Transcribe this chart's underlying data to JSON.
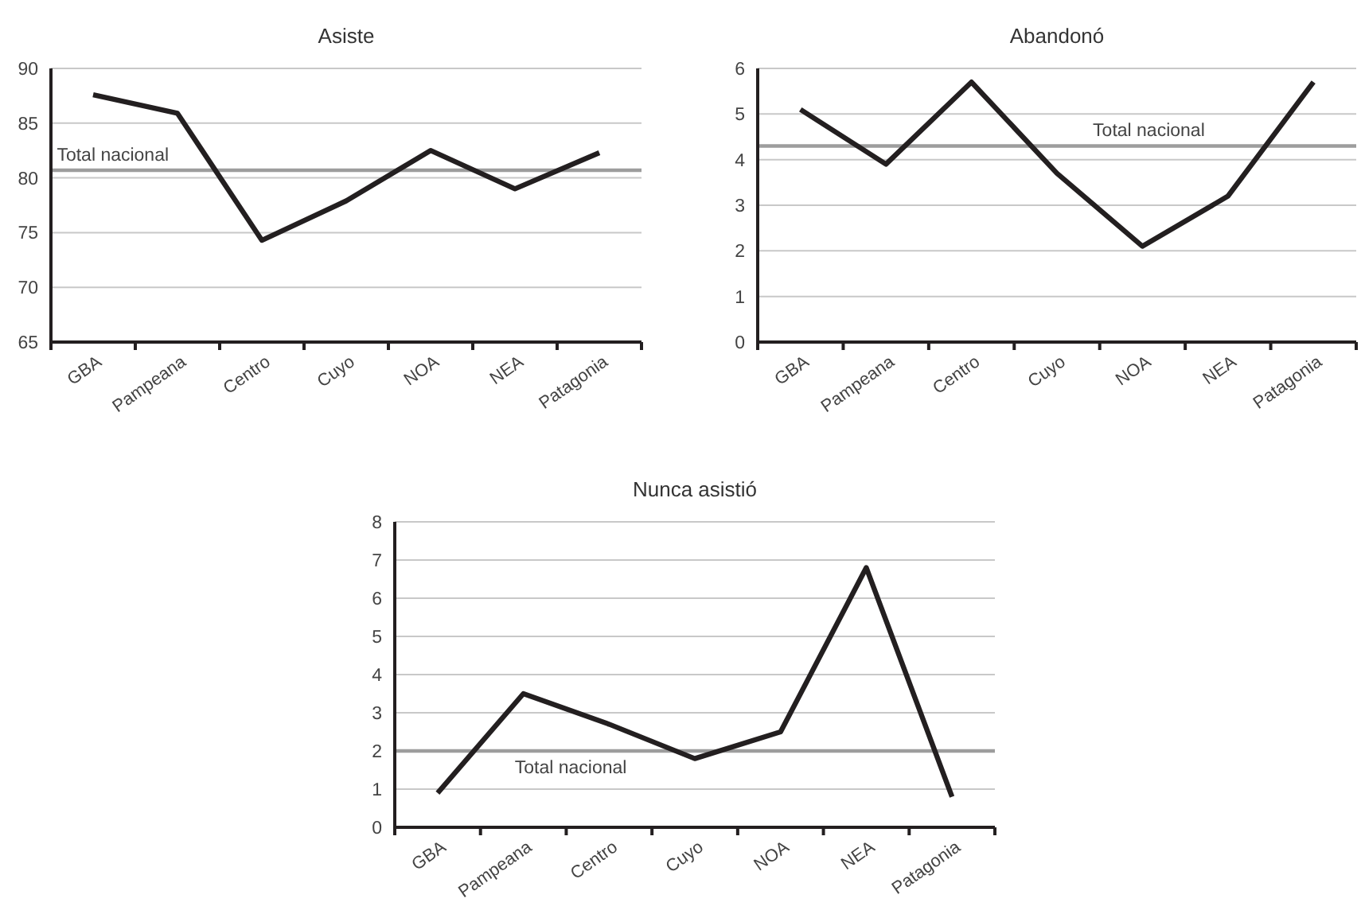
{
  "chart_data": [
    {
      "type": "line",
      "title": "Asiste",
      "categories": [
        "GBA",
        "Pampeana",
        "Centro",
        "Cuyo",
        "NOA",
        "NEA",
        "Patagonia"
      ],
      "series": [
        {
          "color": "#231f20",
          "values": [
            87.6,
            85.9,
            74.3,
            77.9,
            82.5,
            79.0,
            82.3
          ]
        }
      ],
      "ylim": [
        65,
        90
      ],
      "yticks": [
        65,
        70,
        75,
        80,
        85,
        90
      ],
      "grid": "y",
      "marker": "none",
      "line_style": "solid",
      "ref_lines": [
        {
          "axis": "y",
          "value": 80.7,
          "label": "Total nacional",
          "color": "#9d9d9d"
        }
      ]
    },
    {
      "type": "line",
      "title": "Abandonó",
      "categories": [
        "GBA",
        "Pampeana",
        "Centro",
        "Cuyo",
        "NOA",
        "NEA",
        "Patagonia"
      ],
      "series": [
        {
          "color": "#231f20",
          "values": [
            5.1,
            3.9,
            5.7,
            3.7,
            2.1,
            3.2,
            5.7
          ]
        }
      ],
      "ylim": [
        0,
        6
      ],
      "yticks": [
        0,
        1,
        2,
        3,
        4,
        5,
        6
      ],
      "grid": "y",
      "marker": "none",
      "line_style": "solid",
      "ref_lines": [
        {
          "axis": "y",
          "value": 4.3,
          "label": "Total nacional",
          "color": "#9d9d9d"
        }
      ]
    },
    {
      "type": "line",
      "title": "Nunca asistió",
      "categories": [
        "GBA",
        "Pampeana",
        "Centro",
        "Cuyo",
        "NOA",
        "NEA",
        "Patagonia"
      ],
      "series": [
        {
          "color": "#231f20",
          "values": [
            0.9,
            3.5,
            2.7,
            1.8,
            2.5,
            6.8,
            0.8
          ]
        }
      ],
      "ylim": [
        0,
        8
      ],
      "yticks": [
        0,
        1,
        2,
        3,
        4,
        5,
        6,
        7,
        8
      ],
      "grid": "y",
      "marker": "none",
      "line_style": "solid",
      "ref_lines": [
        {
          "axis": "y",
          "value": 2.0,
          "label": "Total nacional",
          "color": "#9d9d9d"
        }
      ]
    }
  ]
}
